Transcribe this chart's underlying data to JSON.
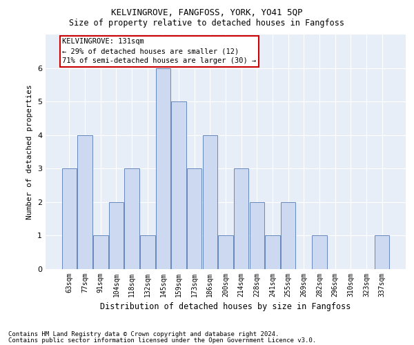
{
  "title": "KELVINGROVE, FANGFOSS, YORK, YO41 5QP",
  "subtitle": "Size of property relative to detached houses in Fangfoss",
  "xlabel": "Distribution of detached houses by size in Fangfoss",
  "ylabel": "Number of detached properties",
  "categories": [
    "63sqm",
    "77sqm",
    "91sqm",
    "104sqm",
    "118sqm",
    "132sqm",
    "145sqm",
    "159sqm",
    "173sqm",
    "186sqm",
    "200sqm",
    "214sqm",
    "228sqm",
    "241sqm",
    "255sqm",
    "269sqm",
    "282sqm",
    "296sqm",
    "310sqm",
    "323sqm",
    "337sqm"
  ],
  "values": [
    3,
    4,
    1,
    2,
    3,
    1,
    6,
    5,
    3,
    4,
    1,
    3,
    2,
    1,
    2,
    0,
    1,
    0,
    0,
    0,
    1
  ],
  "bar_color": "#ccd9f0",
  "bar_edge_color": "#6688bb",
  "annotation_box_text": "KELVINGROVE: 131sqm\n← 29% of detached houses are smaller (12)\n71% of semi-detached houses are larger (30) →",
  "annotation_box_color": "#ffffff",
  "annotation_box_edge_color": "#cc0000",
  "ylim": [
    0,
    7
  ],
  "yticks": [
    0,
    1,
    2,
    3,
    4,
    5,
    6,
    7
  ],
  "background_color": "#e8eef8",
  "grid_color": "#ffffff",
  "footer_line1": "Contains HM Land Registry data © Crown copyright and database right 2024.",
  "footer_line2": "Contains public sector information licensed under the Open Government Licence v3.0.",
  "title_fontsize": 9,
  "subtitle_fontsize": 8.5,
  "xlabel_fontsize": 8.5,
  "ylabel_fontsize": 8,
  "tick_fontsize": 7,
  "annotation_fontsize": 7.5,
  "footer_fontsize": 6.5
}
